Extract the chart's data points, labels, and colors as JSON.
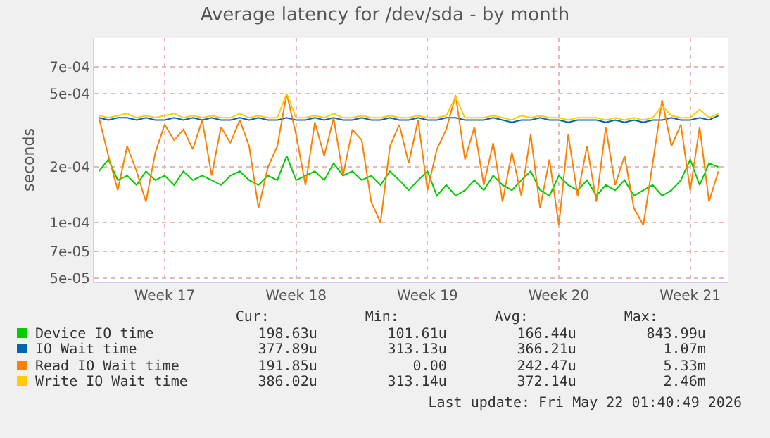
{
  "chart_data": {
    "type": "line",
    "title": "Average latency for /dev/sda - by month",
    "ylabel": "seconds",
    "categories": [
      null,
      null,
      null,
      null,
      null,
      null,
      null,
      "Week 17",
      null,
      null,
      null,
      null,
      null,
      null,
      null,
      null,
      null,
      null,
      null,
      null,
      null,
      "Week 18",
      null,
      null,
      null,
      null,
      null,
      null,
      null,
      null,
      null,
      null,
      null,
      null,
      null,
      "Week 19",
      null,
      null,
      null,
      null,
      null,
      null,
      null,
      null,
      null,
      null,
      null,
      null,
      null,
      "Week 20",
      null,
      null,
      null,
      null,
      null,
      null,
      null,
      null,
      null,
      null,
      null,
      null,
      null,
      "Week 21",
      null,
      null,
      null
    ],
    "series": [
      {
        "name": "Device IO time",
        "color": "#00cc00",
        "values": [
          0.00019,
          0.00022,
          0.00017,
          0.00018,
          0.00016,
          0.00019,
          0.00017,
          0.00018,
          0.00016,
          0.00019,
          0.00017,
          0.00018,
          0.00017,
          0.00016,
          0.00018,
          0.00019,
          0.00017,
          0.00016,
          0.00018,
          0.00017,
          0.00023,
          0.00017,
          0.00018,
          0.00019,
          0.00017,
          0.00021,
          0.00018,
          0.00019,
          0.00017,
          0.00018,
          0.00016,
          0.00019,
          0.00017,
          0.00015,
          0.00017,
          0.00019,
          0.00014,
          0.00016,
          0.00014,
          0.00015,
          0.00017,
          0.00015,
          0.00018,
          0.00016,
          0.00015,
          0.00017,
          0.00019,
          0.00015,
          0.00014,
          0.00018,
          0.00016,
          0.00015,
          0.00017,
          0.00014,
          0.00016,
          0.00015,
          0.00017,
          0.00014,
          0.00015,
          0.00016,
          0.00014,
          0.00015,
          0.00017,
          0.00022,
          0.00016,
          0.00021,
          0.0002
        ]
      },
      {
        "name": "IO Wait time",
        "color": "#0066b3",
        "values": [
          0.00037,
          0.00036,
          0.00037,
          0.00037,
          0.00036,
          0.00037,
          0.00036,
          0.00036,
          0.00037,
          0.00036,
          0.00037,
          0.00036,
          0.00037,
          0.00036,
          0.00036,
          0.00037,
          0.00036,
          0.00037,
          0.00036,
          0.00036,
          0.00037,
          0.00036,
          0.00036,
          0.00037,
          0.00036,
          0.00037,
          0.00036,
          0.00036,
          0.00037,
          0.00036,
          0.00036,
          0.00037,
          0.00036,
          0.00036,
          0.00037,
          0.00036,
          0.00036,
          0.00037,
          0.00037,
          0.00036,
          0.00036,
          0.00036,
          0.00037,
          0.00036,
          0.00035,
          0.00036,
          0.00036,
          0.00037,
          0.00036,
          0.00036,
          0.00035,
          0.00036,
          0.00036,
          0.00036,
          0.00035,
          0.00036,
          0.00035,
          0.00036,
          0.00035,
          0.00036,
          0.00036,
          0.00037,
          0.00036,
          0.00036,
          0.00037,
          0.00036,
          0.00038
        ]
      },
      {
        "name": "Read IO Wait time",
        "color": "#ff8000",
        "values": [
          0.00037,
          0.00023,
          0.00015,
          0.00026,
          0.00019,
          0.00013,
          0.00024,
          0.00034,
          0.00028,
          0.00032,
          0.00025,
          0.00036,
          0.00018,
          0.00033,
          0.00027,
          0.00036,
          0.00026,
          0.00012,
          0.0002,
          0.00026,
          0.0005,
          0.0003,
          0.00016,
          0.00035,
          0.00023,
          0.00037,
          0.00018,
          0.00032,
          0.00028,
          0.00013,
          0.0001,
          0.00026,
          0.00034,
          0.00021,
          0.00036,
          0.00015,
          0.00025,
          0.00032,
          0.00049,
          0.00022,
          0.00033,
          0.00016,
          0.00027,
          0.00013,
          0.00024,
          0.00014,
          0.0003,
          0.00012,
          0.00022,
          9.7e-05,
          0.0003,
          0.00014,
          0.00026,
          0.00013,
          0.00033,
          0.00016,
          0.00023,
          0.00012,
          9.7e-05,
          0.00021,
          0.00046,
          0.00026,
          0.00034,
          0.00015,
          0.00033,
          0.00013,
          0.00019
        ]
      },
      {
        "name": "Write IO Wait time",
        "color": "#ffcc00",
        "values": [
          0.00038,
          0.00037,
          0.00038,
          0.00039,
          0.00037,
          0.00038,
          0.00037,
          0.00038,
          0.00039,
          0.00037,
          0.00038,
          0.00037,
          0.00038,
          0.00037,
          0.00037,
          0.00039,
          0.00037,
          0.00038,
          0.00037,
          0.00037,
          0.0005,
          0.00037,
          0.00037,
          0.00038,
          0.00037,
          0.00039,
          0.00037,
          0.00037,
          0.00038,
          0.00037,
          0.00037,
          0.00038,
          0.00037,
          0.00037,
          0.00038,
          0.00037,
          0.00037,
          0.00038,
          0.00048,
          0.00037,
          0.00037,
          0.00037,
          0.00038,
          0.00037,
          0.00036,
          0.00038,
          0.00037,
          0.00038,
          0.00037,
          0.00037,
          0.00036,
          0.00037,
          0.00037,
          0.00037,
          0.00036,
          0.00037,
          0.00036,
          0.00037,
          0.00036,
          0.00037,
          0.00043,
          0.00038,
          0.00037,
          0.00037,
          0.00041,
          0.00037,
          0.00039
        ]
      }
    ],
    "ylim": [
      4.8e-05,
      0.001
    ],
    "yticks": [
      {
        "value": 5e-05,
        "label": "5e-05"
      },
      {
        "value": 7e-05,
        "label": "7e-05"
      },
      {
        "value": 0.0001,
        "label": "1e-04"
      },
      {
        "value": 0.0002,
        "label": "2e-04"
      },
      {
        "value": 0.0005,
        "label": "5e-04"
      },
      {
        "value": 0.0007,
        "label": "7e-04"
      }
    ],
    "log": "y",
    "grid": true,
    "legend": "bottom",
    "annotations": [
      "Cur:",
      "Min:",
      "Avg:",
      "Max:",
      "198.63u",
      "101.61u",
      "166.44u",
      "843.99u",
      "377.89u",
      "313.13u",
      "366.21u",
      "1.07m",
      "191.85u",
      "0.00",
      "242.47u",
      "5.33m",
      "386.02u",
      "313.14u",
      "372.14u",
      "2.46m",
      "Last update: Fri May 22 01:40:49 2026"
    ]
  }
}
